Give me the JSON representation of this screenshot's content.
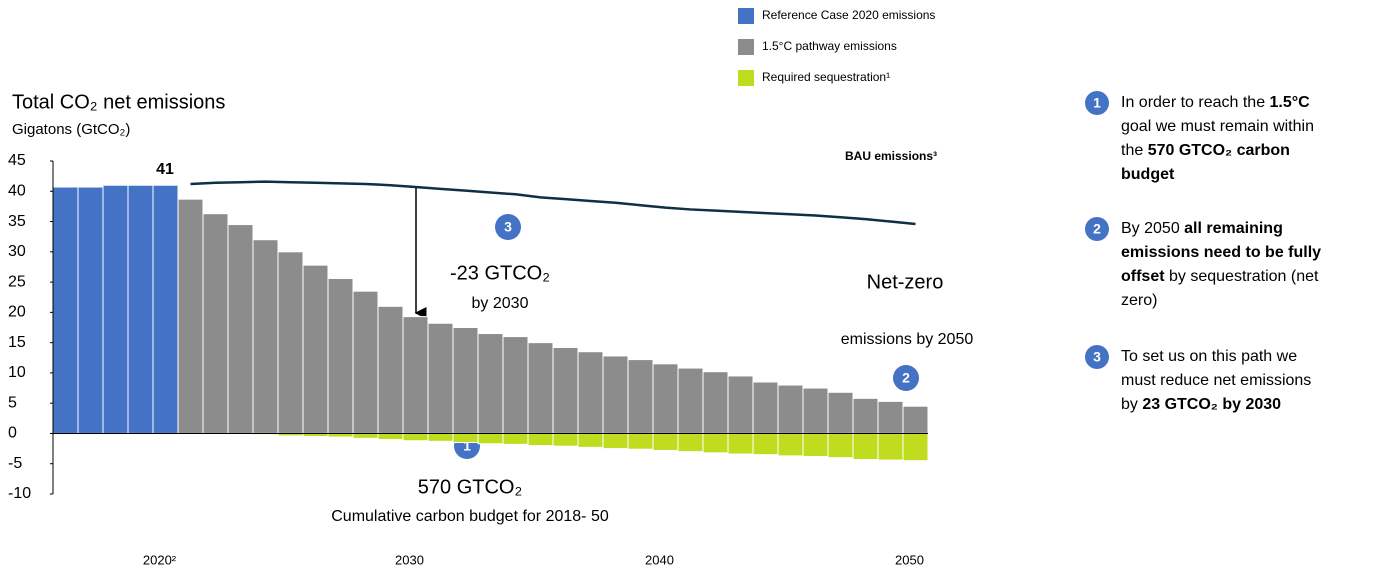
{
  "chart_data": {
    "type": "bar",
    "title": "Total CO₂ net emissions",
    "subtitle": "Gigatons (GtCO₂)",
    "categories": [
      null,
      null,
      null,
      null,
      "2020²",
      null,
      null,
      null,
      null,
      null,
      null,
      null,
      null,
      null,
      "2030",
      null,
      null,
      null,
      null,
      null,
      null,
      null,
      null,
      null,
      "2040",
      null,
      null,
      null,
      null,
      null,
      null,
      null,
      null,
      null,
      "2050"
    ],
    "ylim": [
      -10,
      45
    ],
    "yticks": [
      45,
      40,
      35,
      30,
      25,
      20,
      15,
      10,
      5,
      0,
      -5,
      -10
    ],
    "series": [
      {
        "name": "Reference Case 2020 emissions",
        "color": "#4472c4",
        "values": [
          40.7,
          40.7,
          41,
          41,
          41,
          null,
          null,
          null,
          null,
          null,
          null,
          null,
          null,
          null,
          null,
          null,
          null,
          null,
          null,
          null,
          null,
          null,
          null,
          null,
          null,
          null,
          null,
          null,
          null,
          null,
          null,
          null,
          null,
          null,
          null
        ]
      },
      {
        "name": "1.5°C pathway emissions",
        "color": "#8c8c8c",
        "values": [
          null,
          null,
          null,
          null,
          null,
          38.7,
          36.3,
          34.5,
          32,
          30,
          27.8,
          25.6,
          23.5,
          21,
          19.3,
          18.2,
          17.5,
          16.5,
          16,
          15,
          14.2,
          13.5,
          12.8,
          12.2,
          11.5,
          10.8,
          10.2,
          9.5,
          8.5,
          8,
          7.5,
          6.8,
          5.8,
          5.3,
          4.5
        ]
      },
      {
        "name": "Required sequestration¹",
        "color": "#bfdc1e",
        "values": [
          null,
          null,
          null,
          null,
          null,
          null,
          null,
          null,
          -0.2,
          -0.4,
          -0.5,
          -0.6,
          -0.8,
          -1,
          -1.2,
          -1.3,
          -1.5,
          -1.7,
          -1.8,
          -2,
          -2.1,
          -2.3,
          -2.5,
          -2.6,
          -2.8,
          -3,
          -3.2,
          -3.4,
          -3.5,
          -3.7,
          -3.8,
          -4,
          -4.3,
          -4.4,
          -4.5
        ]
      },
      {
        "type": "line",
        "color": "#0e2f44",
        "values": [
          null,
          null,
          null,
          null,
          null,
          41.2,
          41.4,
          41.5,
          41.6,
          41.5,
          41.4,
          41.3,
          41.2,
          41,
          40.7,
          40.4,
          40.1,
          39.8,
          39.5,
          39,
          38.7,
          38.4,
          38.1,
          37.7,
          37.3,
          37,
          36.8,
          36.6,
          36.4,
          36.2,
          36,
          35.7,
          35.4,
          35,
          34.6
        ]
      }
    ],
    "annotations": [
      "41",
      "BAU emissions³",
      "3",
      "-23 GTCO₂",
      "by 2030",
      "Net-zero",
      "emissions by 2050",
      "2",
      "1",
      "570 GTCO₂",
      "Cumulative carbon budget for 2018- 50"
    ]
  },
  "notes": [
    {
      "number": "1",
      "lines": [
        [
          {
            "text": "In order to reach the "
          },
          {
            "text": "1.5°C",
            "bold": true
          }
        ],
        [
          {
            "text": "goal we must remain within"
          }
        ],
        [
          {
            "text": "the "
          },
          {
            "text": "570 GTCO₂ carbon",
            "bold": true
          }
        ],
        [
          {
            "text": "budget",
            "bold": true
          }
        ]
      ]
    },
    {
      "number": "2",
      "lines": [
        [
          {
            "text": "By 2050 "
          },
          {
            "text": "all remaining",
            "bold": true
          }
        ],
        [
          {
            "text": "emissions need to be fully",
            "bold": true
          }
        ],
        [
          {
            "text": "offset",
            "bold": true
          },
          {
            "text": " by sequestration (net"
          }
        ],
        [
          {
            "text": "zero)"
          }
        ]
      ]
    },
    {
      "number": "3",
      "lines": [
        [
          {
            "text": "To set us on this path we"
          }
        ],
        [
          {
            "text": "must reduce net emissions"
          }
        ],
        [
          {
            "text": "by "
          },
          {
            "text": "23 GTCO₂ by 2030",
            "bold": true
          }
        ]
      ]
    }
  ]
}
